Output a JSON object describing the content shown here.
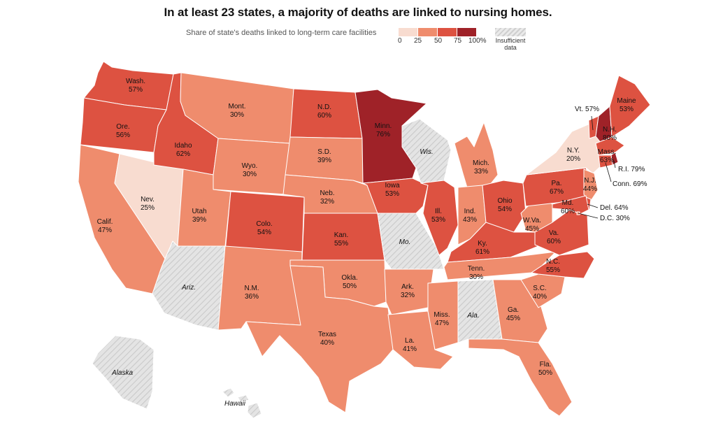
{
  "chart_data": {
    "type": "choropleth",
    "title": "In at least 23 states, a majority of deaths are linked to nursing homes.",
    "subtitle": "Share of state's deaths linked to long-term care facilities",
    "legend": {
      "bins": [
        {
          "from": 0,
          "to": 25,
          "color": "#f8dcd0"
        },
        {
          "from": 25,
          "to": 50,
          "color": "#ef8c6d"
        },
        {
          "from": 50,
          "to": 75,
          "color": "#dd5241"
        },
        {
          "from": 75,
          "to": 100,
          "color": "#9f2228"
        }
      ],
      "ticks": [
        "0",
        "25",
        "50",
        "75",
        "100%"
      ],
      "insufficient_label": [
        "Insufficient",
        "data"
      ],
      "insufficient_color": "#e2e2e2"
    },
    "states": [
      {
        "abbr": "Wash.",
        "value": 57
      },
      {
        "abbr": "Ore.",
        "value": 56
      },
      {
        "abbr": "Calif.",
        "value": 47
      },
      {
        "abbr": "Nev.",
        "value": 25
      },
      {
        "abbr": "Idaho",
        "value": 62
      },
      {
        "abbr": "Mont.",
        "value": 30
      },
      {
        "abbr": "Wyo.",
        "value": 30
      },
      {
        "abbr": "Utah",
        "value": 39
      },
      {
        "abbr": "Ariz.",
        "value": null
      },
      {
        "abbr": "Colo.",
        "value": 54
      },
      {
        "abbr": "N.M.",
        "value": 36
      },
      {
        "abbr": "N.D.",
        "value": 60
      },
      {
        "abbr": "S.D.",
        "value": 39
      },
      {
        "abbr": "Neb.",
        "value": 32
      },
      {
        "abbr": "Kan.",
        "value": 55
      },
      {
        "abbr": "Okla.",
        "value": 50
      },
      {
        "abbr": "Texas",
        "value": 40
      },
      {
        "abbr": "Minn.",
        "value": 76
      },
      {
        "abbr": "Iowa",
        "value": 53
      },
      {
        "abbr": "Mo.",
        "value": null
      },
      {
        "abbr": "Ark.",
        "value": 32
      },
      {
        "abbr": "La.",
        "value": 41
      },
      {
        "abbr": "Wis.",
        "value": null
      },
      {
        "abbr": "Ill.",
        "value": 53
      },
      {
        "abbr": "Mich.",
        "value": 33
      },
      {
        "abbr": "Ind.",
        "value": 43
      },
      {
        "abbr": "Ohio",
        "value": 54
      },
      {
        "abbr": "Ky.",
        "value": 61
      },
      {
        "abbr": "Tenn.",
        "value": 30
      },
      {
        "abbr": "Miss.",
        "value": 47
      },
      {
        "abbr": "Ala.",
        "value": null
      },
      {
        "abbr": "Ga.",
        "value": 45
      },
      {
        "abbr": "Fla.",
        "value": 50
      },
      {
        "abbr": "S.C.",
        "value": 40
      },
      {
        "abbr": "N.C.",
        "value": 55
      },
      {
        "abbr": "Va.",
        "value": 60
      },
      {
        "abbr": "W.Va.",
        "value": 45
      },
      {
        "abbr": "Pa.",
        "value": 67
      },
      {
        "abbr": "N.Y.",
        "value": 20
      },
      {
        "abbr": "Vt.",
        "value": 57
      },
      {
        "abbr": "N.H.",
        "value": 80
      },
      {
        "abbr": "Maine",
        "value": 53
      },
      {
        "abbr": "Mass.",
        "value": 63
      },
      {
        "abbr": "R.I.",
        "value": 79
      },
      {
        "abbr": "Conn.",
        "value": 69
      },
      {
        "abbr": "N.J.",
        "value": 44
      },
      {
        "abbr": "Del.",
        "value": 64
      },
      {
        "abbr": "Md.",
        "value": 60
      },
      {
        "abbr": "D.C.",
        "value": 30
      },
      {
        "abbr": "Alaska",
        "value": null
      },
      {
        "abbr": "Hawaii",
        "value": null
      }
    ]
  }
}
